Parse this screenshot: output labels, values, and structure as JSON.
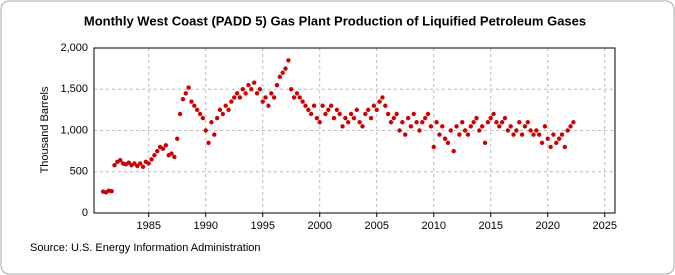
{
  "chart_data": {
    "type": "scatter",
    "title": "Monthly West Coast (PADD 5) Gas Plant Production of Liquified Petroleum Gases",
    "y_label": "Thousand Barrels",
    "source": "Source: U.S. Energy Information Administration",
    "xlim": [
      1980.2,
      2025.9
    ],
    "xticks": [
      1985,
      1990,
      1995,
      2000,
      2005,
      2010,
      2015,
      2020,
      2025
    ],
    "ylim": [
      0,
      2000
    ],
    "yticks": [
      0,
      500,
      {
        "value": 1000,
        "label": "1,000"
      },
      {
        "value": 1500,
        "label": "1,500"
      },
      {
        "value": 2000,
        "label": "2,000"
      }
    ],
    "grid": true,
    "series": [
      {
        "color": "#cc0000",
        "x": [
          1981,
          1981.25,
          1981.5,
          1981.75,
          1982,
          1982.25,
          1982.5,
          1982.75,
          1983,
          1983.25,
          1983.5,
          1983.75,
          1984,
          1984.25,
          1984.5,
          1984.75,
          1985,
          1985.25,
          1985.5,
          1985.75,
          1986,
          1986.25,
          1986.5,
          1986.75,
          1987,
          1987.25,
          1987.5,
          1987.75,
          1988,
          1988.25,
          1988.5,
          1988.75,
          1989,
          1989.25,
          1989.5,
          1989.75,
          1990,
          1990.25,
          1990.5,
          1990.75,
          1991,
          1991.25,
          1991.5,
          1991.75,
          1992,
          1992.25,
          1992.5,
          1992.75,
          1993,
          1993.25,
          1993.5,
          1993.75,
          1994,
          1994.25,
          1994.5,
          1994.75,
          1995,
          1995.25,
          1995.5,
          1995.75,
          1996,
          1996.25,
          1996.5,
          1996.75,
          1997,
          1997.25,
          1997.5,
          1997.75,
          1998,
          1998.25,
          1998.5,
          1998.75,
          1999,
          1999.25,
          1999.5,
          1999.75,
          2000,
          2000.25,
          2000.5,
          2000.75,
          2001,
          2001.25,
          2001.5,
          2001.75,
          2002,
          2002.25,
          2002.5,
          2002.75,
          2003,
          2003.25,
          2003.5,
          2003.75,
          2004,
          2004.25,
          2004.5,
          2004.75,
          2005,
          2005.25,
          2005.5,
          2005.75,
          2006,
          2006.25,
          2006.5,
          2006.75,
          2007,
          2007.25,
          2007.5,
          2007.75,
          2008,
          2008.25,
          2008.5,
          2008.75,
          2009,
          2009.25,
          2009.5,
          2009.75,
          2010,
          2010.25,
          2010.5,
          2010.75,
          2011,
          2011.25,
          2011.5,
          2011.75,
          2012,
          2012.25,
          2012.5,
          2012.75,
          2013,
          2013.25,
          2013.5,
          2013.75,
          2014,
          2014.25,
          2014.5,
          2014.75,
          2015,
          2015.25,
          2015.5,
          2015.75,
          2016,
          2016.25,
          2016.5,
          2016.75,
          2017,
          2017.25,
          2017.5,
          2017.75,
          2018,
          2018.25,
          2018.5,
          2018.75,
          2019,
          2019.25,
          2019.5,
          2019.75,
          2020,
          2020.25,
          2020.5,
          2020.75,
          2021,
          2021.25,
          2021.5,
          2021.75,
          2022,
          2022.25
        ],
        "values": [
          260,
          250,
          270,
          265,
          580,
          620,
          640,
          600,
          590,
          610,
          580,
          600,
          570,
          600,
          560,
          620,
          600,
          650,
          700,
          750,
          800,
          780,
          820,
          700,
          720,
          680,
          900,
          1200,
          1380,
          1450,
          1520,
          1350,
          1300,
          1250,
          1200,
          1150,
          1000,
          850,
          1100,
          950,
          1150,
          1250,
          1200,
          1300,
          1250,
          1350,
          1400,
          1450,
          1400,
          1500,
          1450,
          1550,
          1500,
          1580,
          1450,
          1500,
          1350,
          1400,
          1300,
          1450,
          1400,
          1550,
          1650,
          1700,
          1750,
          1850,
          1500,
          1400,
          1450,
          1400,
          1350,
          1300,
          1250,
          1200,
          1300,
          1150,
          1100,
          1300,
          1200,
          1250,
          1300,
          1150,
          1250,
          1200,
          1050,
          1150,
          1100,
          1200,
          1150,
          1250,
          1100,
          1050,
          1200,
          1250,
          1150,
          1300,
          1250,
          1350,
          1400,
          1300,
          1200,
          1100,
          1150,
          1200,
          1000,
          1100,
          950,
          1150,
          1050,
          1200,
          1100,
          1000,
          1100,
          1150,
          1200,
          1050,
          800,
          1100,
          950,
          1050,
          900,
          850,
          1000,
          750,
          1050,
          950,
          1100,
          1000,
          950,
          1050,
          1100,
          1150,
          1000,
          1050,
          850,
          1100,
          1150,
          1200,
          1100,
          1050,
          1100,
          1150,
          1000,
          1050,
          950,
          1000,
          1100,
          950,
          1050,
          1100,
          1000,
          950,
          1000,
          950,
          850,
          1050,
          900,
          800,
          950,
          850,
          900,
          950,
          800,
          1000,
          1050,
          1100
        ]
      }
    ]
  }
}
